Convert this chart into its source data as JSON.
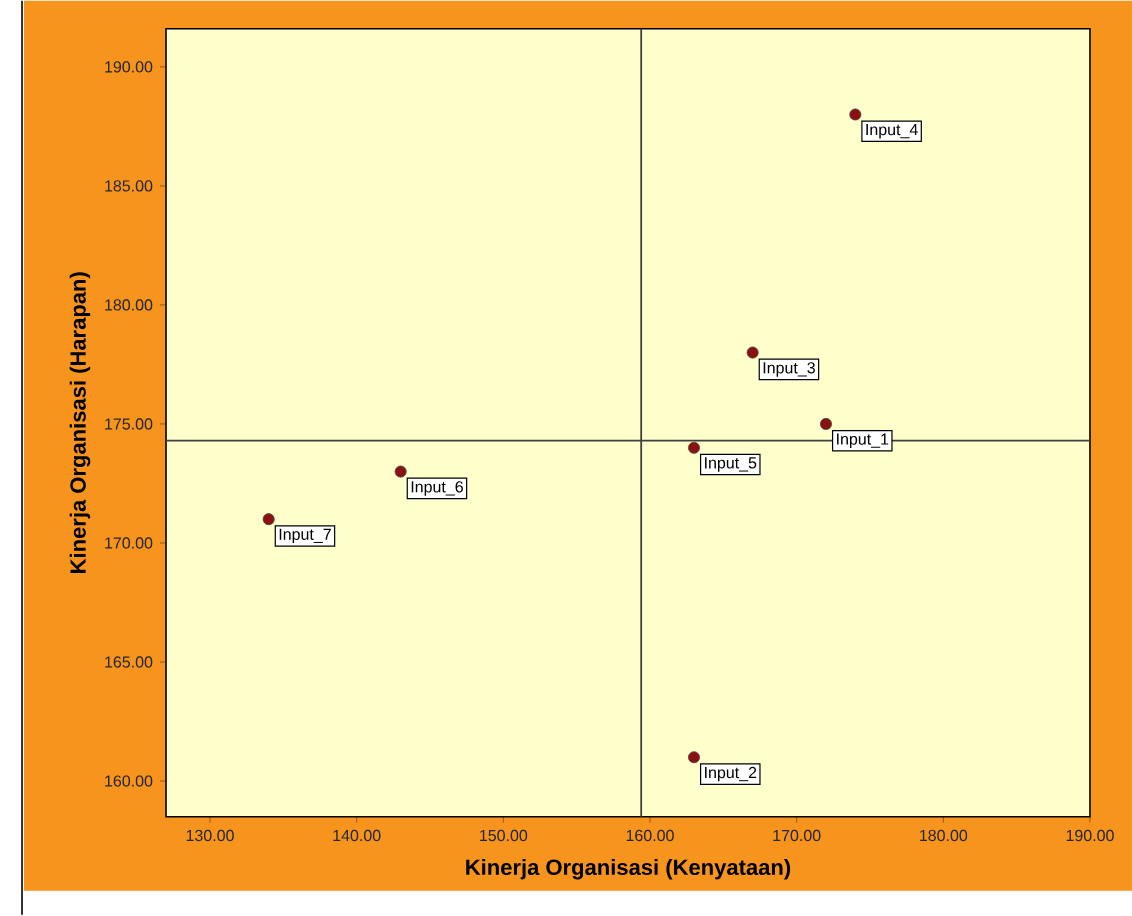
{
  "chart_data": {
    "type": "scatter",
    "xlabel": "Kinerja Organisasi (Kenyataan)",
    "ylabel": "Kinerja Organisasi (Harapan)",
    "x": [
      172,
      163,
      167,
      174,
      163,
      143,
      134
    ],
    "values": [
      175,
      161,
      178,
      188,
      174,
      173,
      171
    ],
    "color": "#8b1010",
    "marker": "circle",
    "xlim": [
      127,
      190
    ],
    "ylim": [
      158.5,
      191.6
    ],
    "xticks": [
      {
        "value": 130,
        "label": "130.00"
      },
      {
        "value": 140,
        "label": "140.00"
      },
      {
        "value": 150,
        "label": "150.00"
      },
      {
        "value": 160,
        "label": "160.00"
      },
      {
        "value": 170,
        "label": "170.00"
      },
      {
        "value": 180,
        "label": "180.00"
      },
      {
        "value": 190,
        "label": "190.00"
      }
    ],
    "yticks": [
      {
        "value": 160,
        "label": "160.00"
      },
      {
        "value": 165,
        "label": "165.00"
      },
      {
        "value": 170,
        "label": "170.00"
      },
      {
        "value": 175,
        "label": "175.00"
      },
      {
        "value": 180,
        "label": "180.00"
      },
      {
        "value": 185,
        "label": "185.00"
      },
      {
        "value": 190,
        "label": "190.00"
      }
    ],
    "ref_lines": [
      {
        "axis": "x",
        "value": 159.4,
        "color": "#404040"
      },
      {
        "axis": "y",
        "value": 174.3,
        "color": "#404040"
      }
    ],
    "annotations": [
      {
        "text": "Input_1",
        "x": 172,
        "y": 175
      },
      {
        "text": "Input_2",
        "x": 163,
        "y": 161
      },
      {
        "text": "Input_3",
        "x": 167,
        "y": 178
      },
      {
        "text": "Input_4",
        "x": 174,
        "y": 188
      },
      {
        "text": "Input_5",
        "x": 163,
        "y": 174
      },
      {
        "text": "Input_6",
        "x": 143,
        "y": 173
      },
      {
        "text": "Input_7",
        "x": 134,
        "y": 171
      }
    ],
    "grid": false
  }
}
